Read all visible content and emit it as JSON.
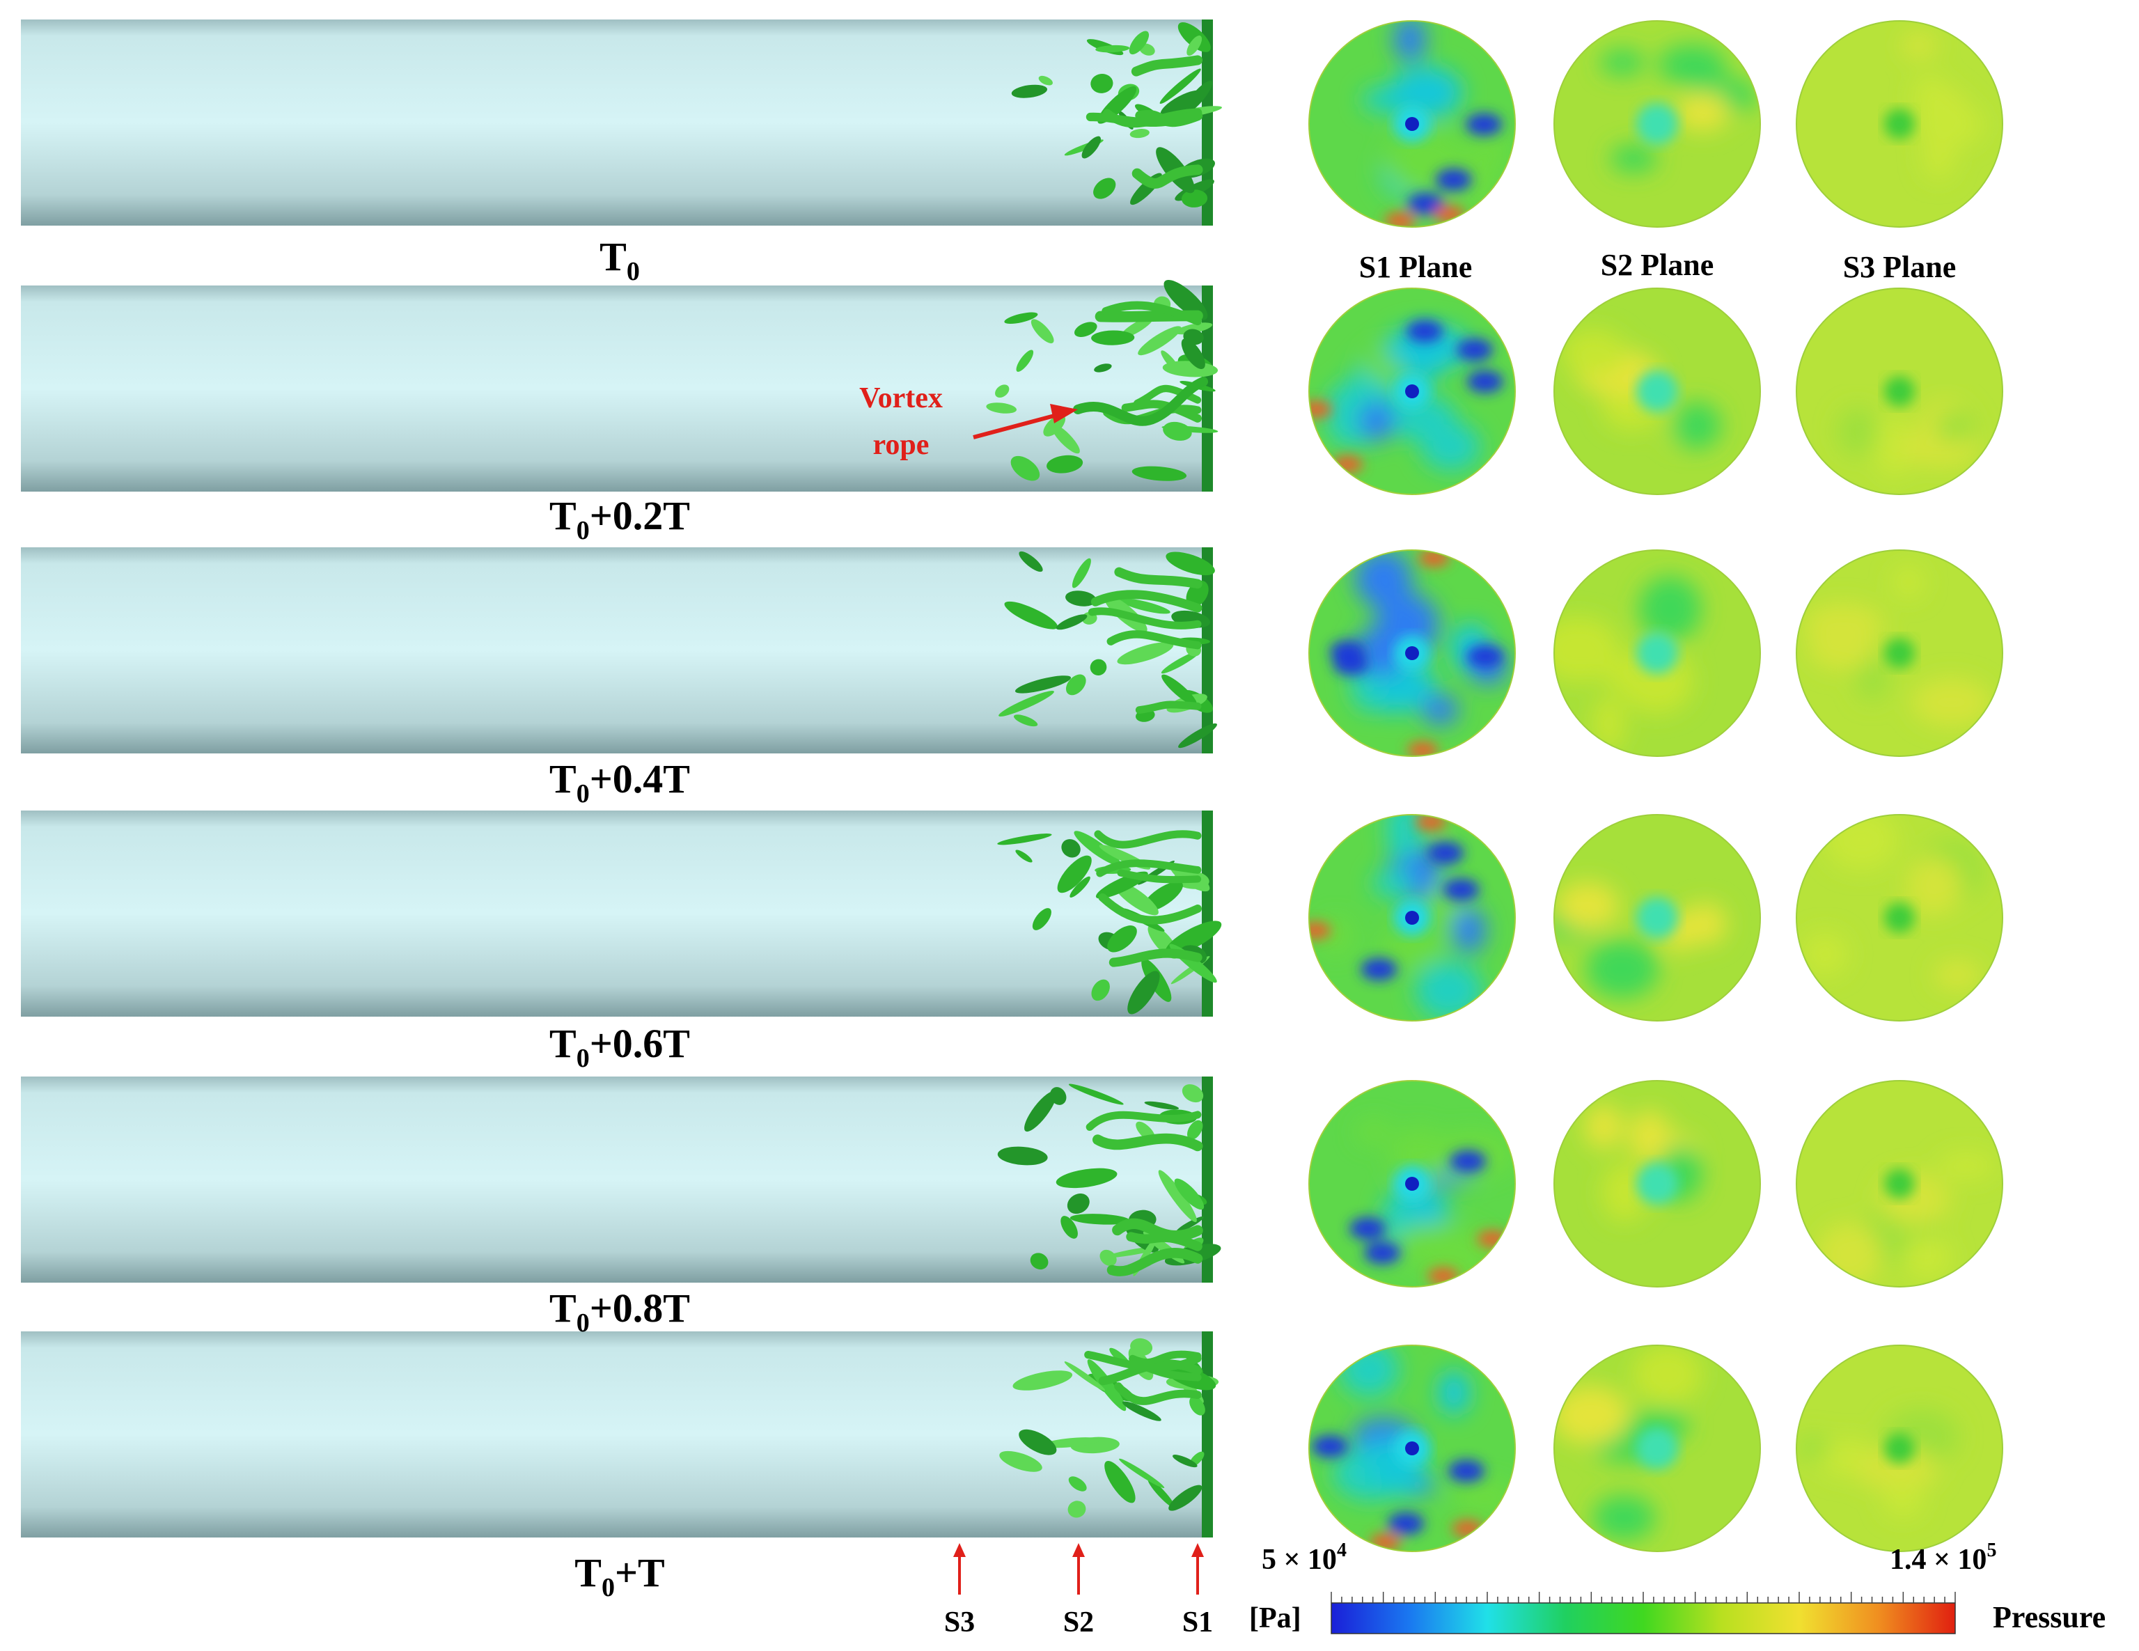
{
  "figure": {
    "time_labels": [
      {
        "base": "T",
        "sub": "0",
        "suffix": ""
      },
      {
        "base": "T",
        "sub": "0",
        "suffix": "+0.2T"
      },
      {
        "base": "T",
        "sub": "0",
        "suffix": "+0.4T"
      },
      {
        "base": "T",
        "sub": "0",
        "suffix": "+0.6T"
      },
      {
        "base": "T",
        "sub": "0",
        "suffix": "+0.8T"
      },
      {
        "base": "T",
        "sub": "0",
        "suffix": "+T"
      }
    ],
    "plane_headers": [
      "S1 Plane",
      "S2 Plane",
      "S3 Plane"
    ],
    "section_markers": [
      "S3",
      "S2",
      "S1"
    ],
    "annotation": {
      "line1": "Vortex",
      "line2": "rope"
    },
    "colorbar": {
      "min_label": "5 × 10",
      "min_exp": "4",
      "max_label": "1.4 × 10",
      "max_exp": "5",
      "unit": "[Pa]",
      "quantity": "Pressure",
      "min_value": 50000,
      "max_value": 140000,
      "colors": [
        "#1a1fd8",
        "#1a78f0",
        "#20e0e8",
        "#20d060",
        "#40d820",
        "#b8e020",
        "#f0e030",
        "#f09020",
        "#e02010"
      ]
    },
    "colors": {
      "pipe": "#c9eced",
      "vortex": "#3ec43a",
      "arrow": "#e0201a"
    }
  }
}
